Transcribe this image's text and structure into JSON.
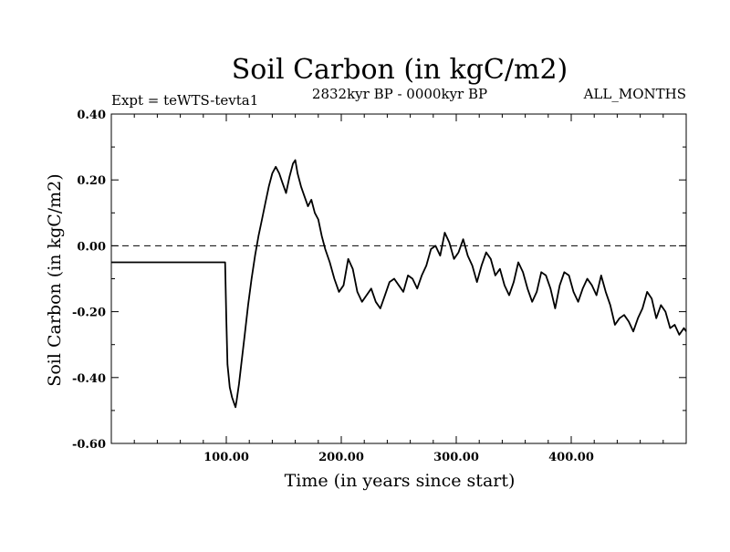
{
  "chart_data": {
    "type": "line",
    "title": "Soil Carbon (in kgC/m2)",
    "subtitle_left": "Expt = teWTS-tevta1",
    "subtitle_center": "2832kyr BP - 0000kyr BP",
    "subtitle_right": "ALL_MONTHS",
    "xlabel": "Time (in years since start)",
    "ylabel": "Soil Carbon (in kgC/m2)",
    "xlim": [
      0,
      500
    ],
    "ylim": [
      -0.6,
      0.4
    ],
    "x_ticks": [
      100,
      200,
      300,
      400
    ],
    "x_tick_labels": [
      "100.00",
      "200.00",
      "300.00",
      "400.00"
    ],
    "y_ticks": [
      0.4,
      0.2,
      0.0,
      -0.2,
      -0.4,
      -0.6
    ],
    "y_tick_labels": [
      "0.40",
      "0.20",
      "0.00",
      "-0.20",
      "-0.40",
      "-0.60"
    ],
    "reference_line": 0.0,
    "series": [
      {
        "name": "Soil Carbon",
        "x": [
          0,
          99,
          100,
          101,
          103,
          105,
          107,
          108,
          109,
          111,
          113,
          116,
          119,
          122,
          125,
          128,
          131,
          134,
          137,
          140,
          143,
          146,
          149,
          152,
          155,
          158,
          160,
          162,
          165,
          168,
          171,
          174,
          177,
          180,
          183,
          186,
          190,
          194,
          198,
          202,
          206,
          210,
          214,
          218,
          222,
          226,
          230,
          234,
          238,
          242,
          246,
          250,
          254,
          258,
          262,
          266,
          270,
          274,
          278,
          282,
          286,
          290,
          294,
          298,
          302,
          306,
          310,
          314,
          318,
          322,
          326,
          330,
          334,
          338,
          342,
          346,
          350,
          354,
          358,
          362,
          366,
          370,
          374,
          378,
          382,
          386,
          390,
          394,
          398,
          402,
          406,
          410,
          414,
          418,
          422,
          426,
          430,
          434,
          438,
          442,
          446,
          450,
          454,
          458,
          462,
          466,
          470,
          474,
          478,
          482,
          486,
          490,
          494,
          498,
          500
        ],
        "y": [
          -0.05,
          -0.05,
          -0.22,
          -0.36,
          -0.43,
          -0.46,
          -0.48,
          -0.49,
          -0.47,
          -0.42,
          -0.36,
          -0.27,
          -0.18,
          -0.1,
          -0.03,
          0.03,
          0.08,
          0.13,
          0.18,
          0.22,
          0.24,
          0.22,
          0.19,
          0.16,
          0.21,
          0.25,
          0.26,
          0.22,
          0.18,
          0.15,
          0.12,
          0.14,
          0.1,
          0.08,
          0.03,
          -0.01,
          -0.05,
          -0.1,
          -0.14,
          -0.12,
          -0.04,
          -0.07,
          -0.14,
          -0.17,
          -0.15,
          -0.13,
          -0.17,
          -0.19,
          -0.15,
          -0.11,
          -0.1,
          -0.12,
          -0.14,
          -0.09,
          -0.1,
          -0.13,
          -0.09,
          -0.06,
          -0.01,
          0.0,
          -0.03,
          0.04,
          0.01,
          -0.04,
          -0.02,
          0.02,
          -0.03,
          -0.06,
          -0.11,
          -0.06,
          -0.02,
          -0.04,
          -0.09,
          -0.07,
          -0.12,
          -0.15,
          -0.11,
          -0.05,
          -0.08,
          -0.13,
          -0.17,
          -0.14,
          -0.08,
          -0.09,
          -0.13,
          -0.19,
          -0.12,
          -0.08,
          -0.09,
          -0.14,
          -0.17,
          -0.13,
          -0.1,
          -0.12,
          -0.15,
          -0.09,
          -0.14,
          -0.18,
          -0.24,
          -0.22,
          -0.21,
          -0.23,
          -0.26,
          -0.22,
          -0.19,
          -0.14,
          -0.16,
          -0.22,
          -0.18,
          -0.2,
          -0.25,
          -0.24,
          -0.27,
          -0.25,
          -0.26
        ]
      }
    ]
  }
}
